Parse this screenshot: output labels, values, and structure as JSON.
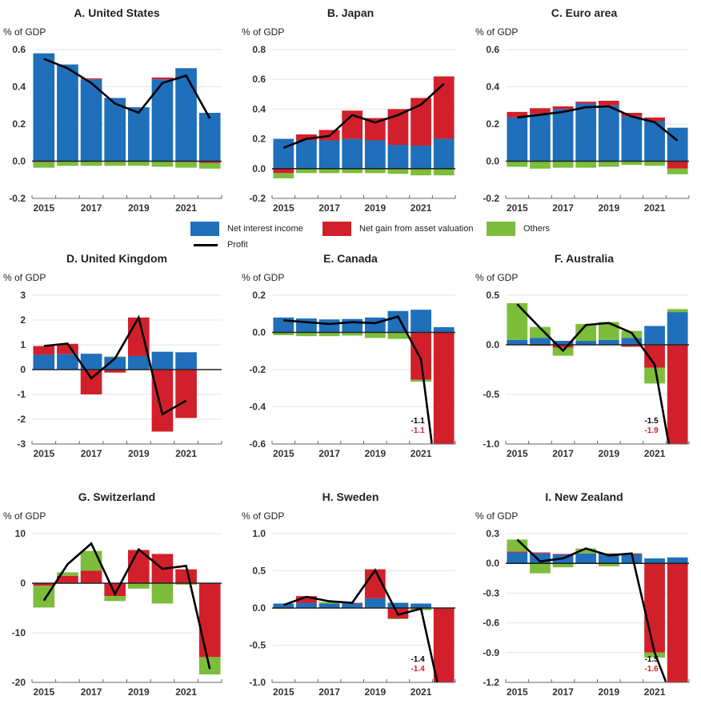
{
  "legend": {
    "net_interest": "Net interest income",
    "asset_valuation": "Net gain from asset valuation",
    "others": "Others",
    "profit": "Profit"
  },
  "colors": {
    "net_interest": "#1f6fba",
    "asset_valuation": "#d1202b",
    "others": "#7dbd3c",
    "profit": "#000000",
    "annotation_profit": "#000000",
    "annotation_asset": "#d1202b"
  },
  "chart_data": [
    {
      "type": "bar",
      "title": "A. United States",
      "ylabel": "% of GDP",
      "ylim": [
        -0.2,
        0.6
      ],
      "yticks": [
        "0.6",
        "0.4",
        "0.2",
        "0.0",
        "-0.2"
      ],
      "ytick_values": [
        0.6,
        0.4,
        0.2,
        0.0,
        -0.2
      ],
      "categories": [
        "2015",
        "2016",
        "2017",
        "2018",
        "2019",
        "2020",
        "2021",
        "2022"
      ],
      "xtick_labels": [
        "2015",
        "2017",
        "2019",
        "2021"
      ],
      "series": [
        {
          "name": "Net interest income",
          "values": [
            0.58,
            0.52,
            0.44,
            0.34,
            0.29,
            0.44,
            0.5,
            0.26
          ]
        },
        {
          "name": "Net gain from asset valuation",
          "values": [
            -0.005,
            0.0,
            0.005,
            0.0,
            0.0,
            0.01,
            -0.005,
            -0.01
          ]
        },
        {
          "name": "Others",
          "values": [
            -0.03,
            -0.025,
            -0.025,
            -0.025,
            -0.025,
            -0.03,
            -0.03,
            -0.03
          ]
        },
        {
          "name": "Profit",
          "values": [
            0.55,
            0.5,
            0.42,
            0.31,
            0.26,
            0.42,
            0.46,
            0.23
          ]
        }
      ],
      "grid": true,
      "annotations": []
    },
    {
      "type": "bar",
      "title": "B. Japan",
      "ylabel": "% of GDP",
      "ylim": [
        -0.2,
        0.8
      ],
      "yticks": [
        "0.8",
        "0.6",
        "0.4",
        "0.2",
        "0.0",
        "-0.2"
      ],
      "ytick_values": [
        0.8,
        0.6,
        0.4,
        0.2,
        0.0,
        -0.2
      ],
      "categories": [
        "2015",
        "2016",
        "2017",
        "2018",
        "2019",
        "2020",
        "2021",
        "2022"
      ],
      "xtick_labels": [
        "2015",
        "2017",
        "2019",
        "2021"
      ],
      "series": [
        {
          "name": "Net interest income",
          "values": [
            0.2,
            0.19,
            0.19,
            0.2,
            0.19,
            0.16,
            0.155,
            0.2
          ]
        },
        {
          "name": "Net gain from asset valuation",
          "values": [
            -0.03,
            0.04,
            0.07,
            0.19,
            0.15,
            0.24,
            0.32,
            0.42
          ]
        },
        {
          "name": "Others",
          "values": [
            -0.035,
            -0.03,
            -0.03,
            -0.03,
            -0.03,
            -0.035,
            -0.045,
            -0.045
          ]
        },
        {
          "name": "Profit",
          "values": [
            0.14,
            0.2,
            0.22,
            0.36,
            0.31,
            0.36,
            0.43,
            0.57
          ]
        }
      ],
      "grid": true,
      "annotations": []
    },
    {
      "type": "bar",
      "title": "C. Euro area",
      "ylabel": "% of GDP",
      "ylim": [
        -0.2,
        0.6
      ],
      "yticks": [
        "0.6",
        "0.4",
        "0.2",
        "0.0",
        "-0.2"
      ],
      "ytick_values": [
        0.6,
        0.4,
        0.2,
        0.0,
        -0.2
      ],
      "categories": [
        "2015",
        "2016",
        "2017",
        "2018",
        "2019",
        "2020",
        "2021",
        "2022"
      ],
      "xtick_labels": [
        "2015",
        "2017",
        "2019",
        "2021"
      ],
      "series": [
        {
          "name": "Net interest income",
          "values": [
            0.235,
            0.255,
            0.28,
            0.31,
            0.3,
            0.24,
            0.215,
            0.18
          ]
        },
        {
          "name": "Net gain from asset valuation",
          "values": [
            0.03,
            0.03,
            0.015,
            0.01,
            0.025,
            0.02,
            0.02,
            -0.04
          ]
        },
        {
          "name": "Others",
          "values": [
            -0.03,
            -0.04,
            -0.035,
            -0.035,
            -0.03,
            -0.02,
            -0.025,
            -0.03
          ]
        },
        {
          "name": "Profit",
          "values": [
            0.235,
            0.25,
            0.265,
            0.29,
            0.295,
            0.24,
            0.21,
            0.11
          ]
        }
      ],
      "grid": true,
      "annotations": []
    },
    {
      "type": "bar",
      "title": "D. United Kingdom",
      "ylabel": "% of GDP",
      "ylim": [
        -3,
        3
      ],
      "yticks": [
        "3",
        "2",
        "1",
        "0",
        "-1",
        "-2",
        "-3"
      ],
      "ytick_values": [
        3,
        2,
        1,
        0,
        -1,
        -2,
        -3
      ],
      "categories": [
        "2015",
        "2016",
        "2017",
        "2018",
        "2019",
        "2020",
        "2021",
        "2022"
      ],
      "xtick_labels": [
        "2015",
        "2017",
        "2019",
        "2021"
      ],
      "series": [
        {
          "name": "Net interest income",
          "values": [
            0.6,
            0.62,
            0.64,
            0.5,
            0.55,
            0.72,
            0.7,
            null
          ]
        },
        {
          "name": "Net gain from asset valuation",
          "values": [
            0.35,
            0.42,
            -1.0,
            -0.12,
            1.55,
            -2.5,
            -1.95,
            null
          ]
        },
        {
          "name": "Others",
          "values": [
            0.0,
            0.0,
            0.0,
            0.03,
            0.0,
            0.0,
            0.0,
            null
          ]
        },
        {
          "name": "Profit",
          "values": [
            0.95,
            1.05,
            -0.35,
            0.45,
            2.1,
            -1.8,
            -1.25,
            null
          ]
        }
      ],
      "grid": true,
      "annotations": []
    },
    {
      "type": "bar",
      "title": "E. Canada",
      "ylabel": "% of GDP",
      "ylim": [
        -0.6,
        0.2
      ],
      "yticks": [
        "0.2",
        "0.0",
        "-0.2",
        "-0.4",
        "-0.6"
      ],
      "ytick_values": [
        0.2,
        0.0,
        -0.2,
        -0.4,
        -0.6
      ],
      "categories": [
        "2015",
        "2016",
        "2017",
        "2018",
        "2019",
        "2020",
        "2021",
        "2022"
      ],
      "xtick_labels": [
        "2015",
        "2017",
        "2019",
        "2021"
      ],
      "series": [
        {
          "name": "Net interest income",
          "values": [
            0.08,
            0.075,
            0.07,
            0.072,
            0.08,
            0.115,
            0.122,
            0.028
          ]
        },
        {
          "name": "Net gain from asset valuation",
          "values": [
            0.0,
            0.0,
            0.0,
            0.0,
            0.0,
            0.0,
            -0.255,
            -1.1
          ]
        },
        {
          "name": "Others",
          "values": [
            -0.015,
            -0.02,
            -0.02,
            -0.017,
            -0.03,
            -0.035,
            -0.01,
            0.0
          ]
        },
        {
          "name": "Profit",
          "values": [
            0.065,
            0.055,
            0.045,
            0.055,
            0.05,
            0.085,
            -0.145,
            -1.1
          ]
        }
      ],
      "grid": true,
      "annotations": [
        {
          "text": "-1.1",
          "series": "Profit",
          "color_key": "annotation_profit"
        },
        {
          "text": "-1.1",
          "series": "Net gain from asset valuation",
          "color_key": "annotation_asset"
        }
      ]
    },
    {
      "type": "bar",
      "title": "F. Australia",
      "ylabel": "% of GDP",
      "ylim": [
        -1.0,
        0.5
      ],
      "yticks": [
        "0.5",
        "0.0",
        "-0.5",
        "-1.0"
      ],
      "ytick_values": [
        0.5,
        0.0,
        -0.5,
        -1.0
      ],
      "categories": [
        "2015",
        "2016",
        "2017",
        "2018",
        "2019",
        "2020",
        "2021",
        "2022"
      ],
      "xtick_labels": [
        "2015",
        "2017",
        "2019",
        "2021"
      ],
      "series": [
        {
          "name": "Net interest income",
          "values": [
            0.05,
            0.07,
            0.04,
            0.04,
            0.05,
            0.07,
            0.19,
            0.33
          ]
        },
        {
          "name": "Net gain from asset valuation",
          "values": [
            0.0,
            -0.01,
            -0.03,
            0.0,
            0.0,
            -0.02,
            -0.23,
            -1.9
          ]
        },
        {
          "name": "Others",
          "values": [
            0.37,
            0.11,
            -0.08,
            0.17,
            0.18,
            0.07,
            -0.16,
            0.03
          ]
        },
        {
          "name": "Profit",
          "values": [
            0.41,
            0.17,
            -0.06,
            0.2,
            0.22,
            0.12,
            -0.2,
            -1.5
          ]
        }
      ],
      "grid": true,
      "annotations": [
        {
          "text": "-1.5",
          "series": "Profit",
          "color_key": "annotation_profit"
        },
        {
          "text": "-1.9",
          "series": "Net gain from asset valuation",
          "color_key": "annotation_asset"
        }
      ]
    },
    {
      "type": "bar",
      "title": "G. Switzerland",
      "ylabel": "% of GDP",
      "ylim": [
        -20,
        10
      ],
      "yticks": [
        "10",
        "0",
        "-10",
        "-20"
      ],
      "ytick_values": [
        10,
        0,
        -10,
        -20
      ],
      "categories": [
        "2015",
        "2016",
        "2017",
        "2018",
        "2019",
        "2020",
        "2021",
        "2022"
      ],
      "xtick_labels": [
        "2015",
        "2017",
        "2019",
        "2021"
      ],
      "series": [
        {
          "name": "Net interest income",
          "values": [
            0.0,
            0.0,
            0.0,
            0.0,
            0.0,
            0.0,
            0.0,
            0.0
          ]
        },
        {
          "name": "Net gain from asset valuation",
          "values": [
            -0.5,
            1.5,
            2.5,
            -2.6,
            6.7,
            5.9,
            2.8,
            -14.9
          ]
        },
        {
          "name": "Others",
          "values": [
            -4.4,
            0.7,
            4.0,
            -1.0,
            -1.1,
            -4.1,
            -0.3,
            -3.5
          ]
        },
        {
          "name": "Profit",
          "values": [
            -3.5,
            3.8,
            8.0,
            -2.2,
            6.8,
            2.9,
            3.5,
            -17.3
          ]
        }
      ],
      "grid": true,
      "annotations": []
    },
    {
      "type": "bar",
      "title": "H. Sweden",
      "ylabel": "% of GDP",
      "ylim": [
        -1.0,
        1.0
      ],
      "yticks": [
        "1.0",
        "0.5",
        "0.0",
        "-0.5",
        "-1.0"
      ],
      "ytick_values": [
        1.0,
        0.5,
        0.0,
        -0.5,
        -1.0
      ],
      "categories": [
        "2015",
        "2016",
        "2017",
        "2018",
        "2019",
        "2020",
        "2021",
        "2022"
      ],
      "xtick_labels": [
        "2015",
        "2017",
        "2019",
        "2021"
      ],
      "series": [
        {
          "name": "Net interest income",
          "values": [
            0.06,
            0.07,
            0.06,
            0.06,
            0.13,
            0.07,
            0.06,
            0.0
          ]
        },
        {
          "name": "Net gain from asset valuation",
          "values": [
            0.0,
            0.09,
            0.0,
            0.01,
            0.39,
            -0.14,
            -0.01,
            -1.4
          ]
        },
        {
          "name": "Others",
          "values": [
            -0.01,
            0.0,
            0.02,
            0.0,
            0.0,
            -0.01,
            -0.02,
            0.0
          ]
        },
        {
          "name": "Profit",
          "values": [
            0.04,
            0.15,
            0.09,
            0.07,
            0.51,
            -0.09,
            -0.01,
            -1.4
          ]
        }
      ],
      "grid": true,
      "annotations": [
        {
          "text": "-1.4",
          "series": "Profit",
          "color_key": "annotation_profit"
        },
        {
          "text": "-1.4",
          "series": "Net gain from asset valuation",
          "color_key": "annotation_asset"
        }
      ]
    },
    {
      "type": "bar",
      "title": "I. New Zealand",
      "ylabel": "% of GDP",
      "ylim": [
        -1.2,
        0.3
      ],
      "yticks": [
        "0.3",
        "0.0",
        "-0.3",
        "-0.6",
        "-0.9",
        "-1.2"
      ],
      "ytick_values": [
        0.3,
        0.0,
        -0.3,
        -0.6,
        -0.9,
        -1.2
      ],
      "categories": [
        "2015",
        "2016",
        "2017",
        "2018",
        "2019",
        "2020",
        "2021",
        "2022"
      ],
      "xtick_labels": [
        "2015",
        "2017",
        "2019",
        "2021"
      ],
      "series": [
        {
          "name": "Net interest income",
          "values": [
            0.11,
            0.1,
            0.09,
            0.1,
            0.09,
            0.09,
            0.05,
            0.06
          ]
        },
        {
          "name": "Net gain from asset valuation",
          "values": [
            0.01,
            0.01,
            0.005,
            0.0,
            0.01,
            0.01,
            -0.9,
            -1.6
          ]
        },
        {
          "name": "Others",
          "values": [
            0.12,
            -0.1,
            -0.04,
            0.05,
            -0.03,
            0.0,
            -0.05,
            0.0
          ]
        },
        {
          "name": "Profit",
          "values": [
            0.24,
            0.02,
            0.05,
            0.15,
            0.08,
            0.1,
            -0.9,
            -1.5
          ]
        }
      ],
      "grid": true,
      "annotations": [
        {
          "text": "-1.5",
          "series": "Profit",
          "color_key": "annotation_profit"
        },
        {
          "text": "-1.6",
          "series": "Net gain from asset valuation",
          "color_key": "annotation_asset"
        }
      ]
    }
  ]
}
